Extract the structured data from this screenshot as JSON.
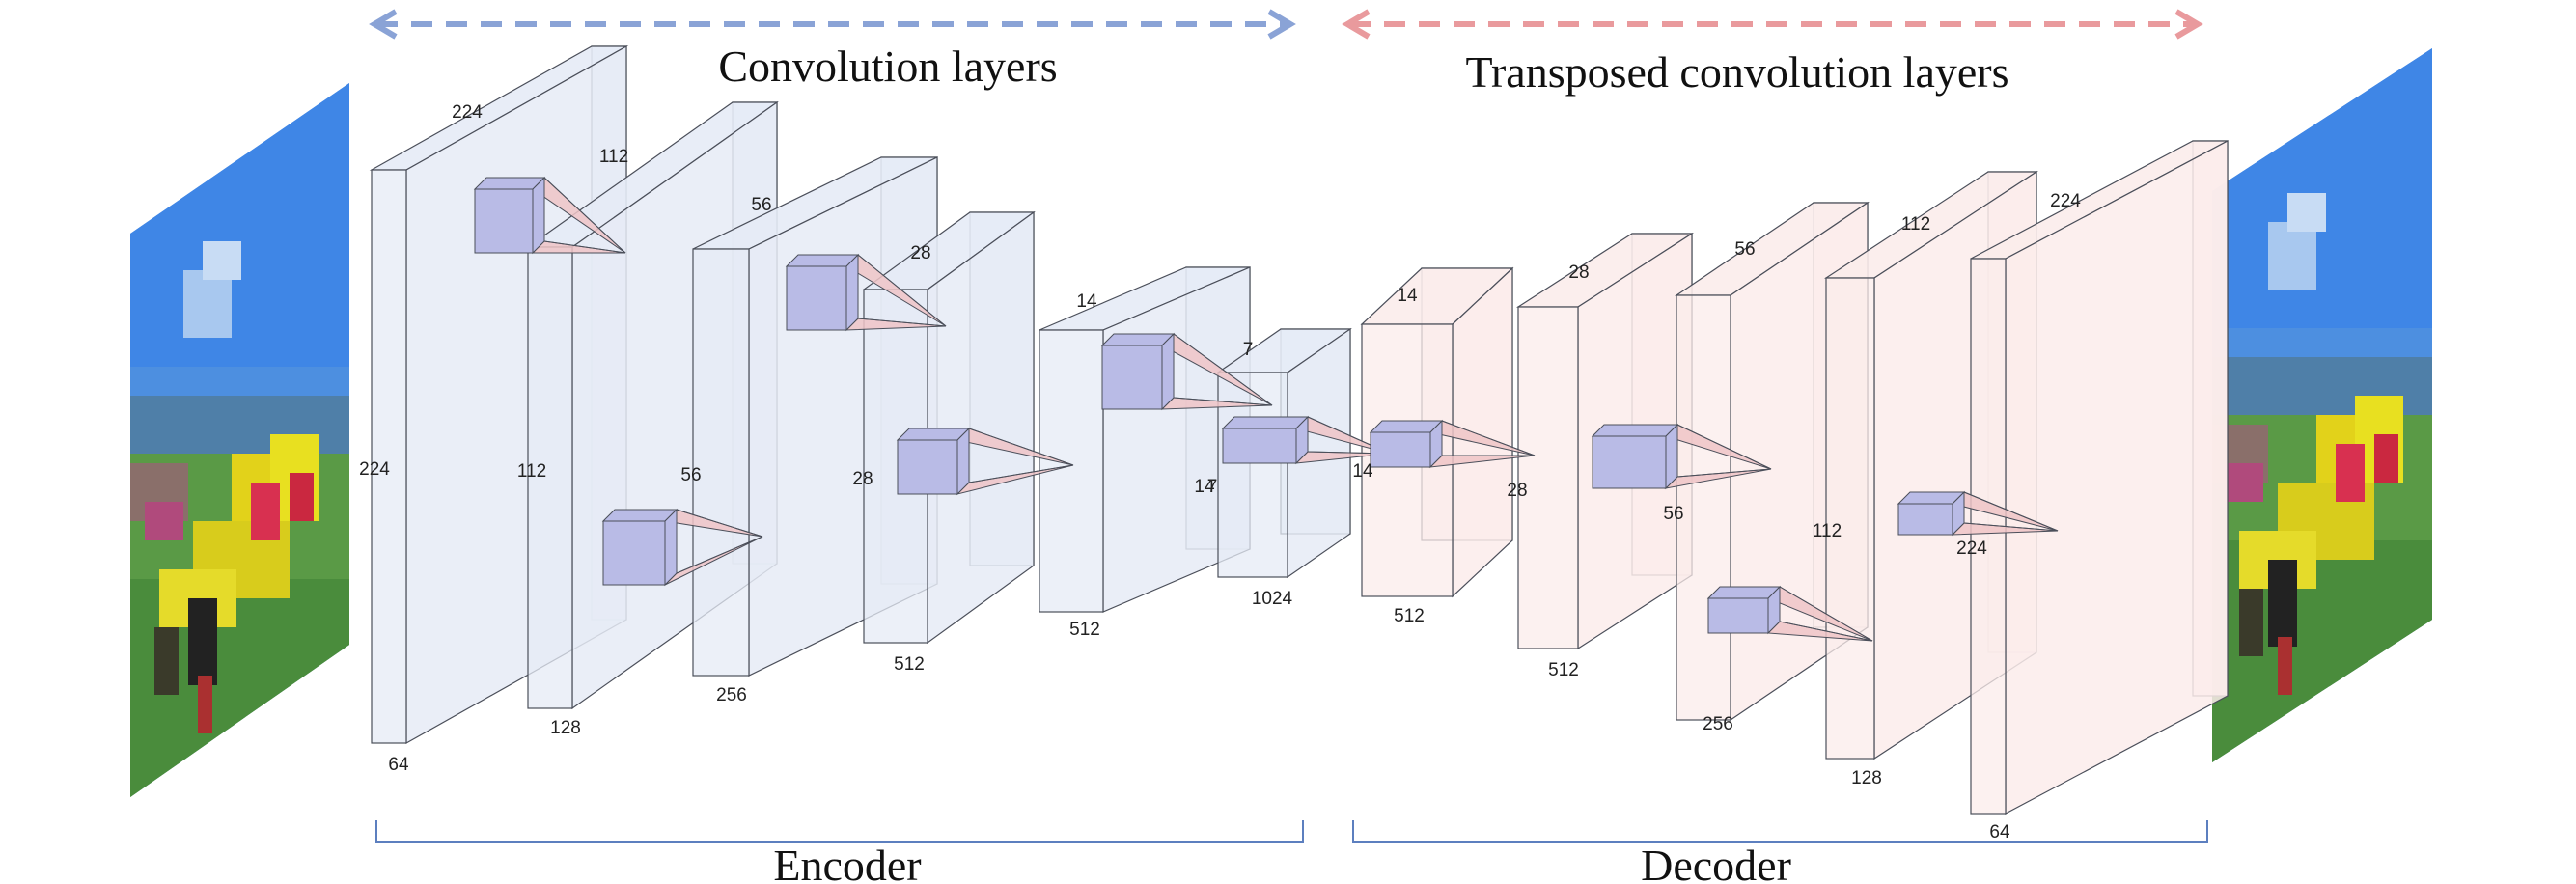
{
  "header": {
    "left_title": "Convolution layers",
    "right_title": "Transposed convolution layers"
  },
  "footer": {
    "encoder_label": "Encoder",
    "decoder_label": "Decoder"
  },
  "colors": {
    "encoder_arrow": "#8aa3d6",
    "decoder_arrow": "#e99a9d",
    "encoder_fill": "#e6ebf6",
    "decoder_fill": "#fbeceb",
    "box_stroke": "#4b4f5a",
    "kernel_fill": "#b9bbe6",
    "cone_fill": "#efc4c7",
    "bracket": "#5c7fbf"
  },
  "encoder": {
    "blocks": [
      {
        "top": "224",
        "side": "224",
        "bottom": "64"
      },
      {
        "top": "112",
        "side": "112",
        "bottom": "128"
      },
      {
        "top": "56",
        "side": "56",
        "bottom": "256"
      },
      {
        "top": "28",
        "side": "28",
        "bottom": "512"
      },
      {
        "top": "14",
        "side": "14",
        "bottom": "512"
      },
      {
        "top": "7",
        "side": "7",
        "bottom": "1024"
      }
    ]
  },
  "decoder": {
    "blocks": [
      {
        "top": "14",
        "side": "14",
        "bottom": "512"
      },
      {
        "top": "28",
        "side": "28",
        "bottom": "512"
      },
      {
        "top": "56",
        "side": "56",
        "bottom": "256"
      },
      {
        "top": "112",
        "side": "112",
        "bottom": "128"
      },
      {
        "top": "224",
        "side": "224",
        "bottom": "64"
      }
    ]
  },
  "images": {
    "input": "input-image",
    "output": "output-image"
  }
}
